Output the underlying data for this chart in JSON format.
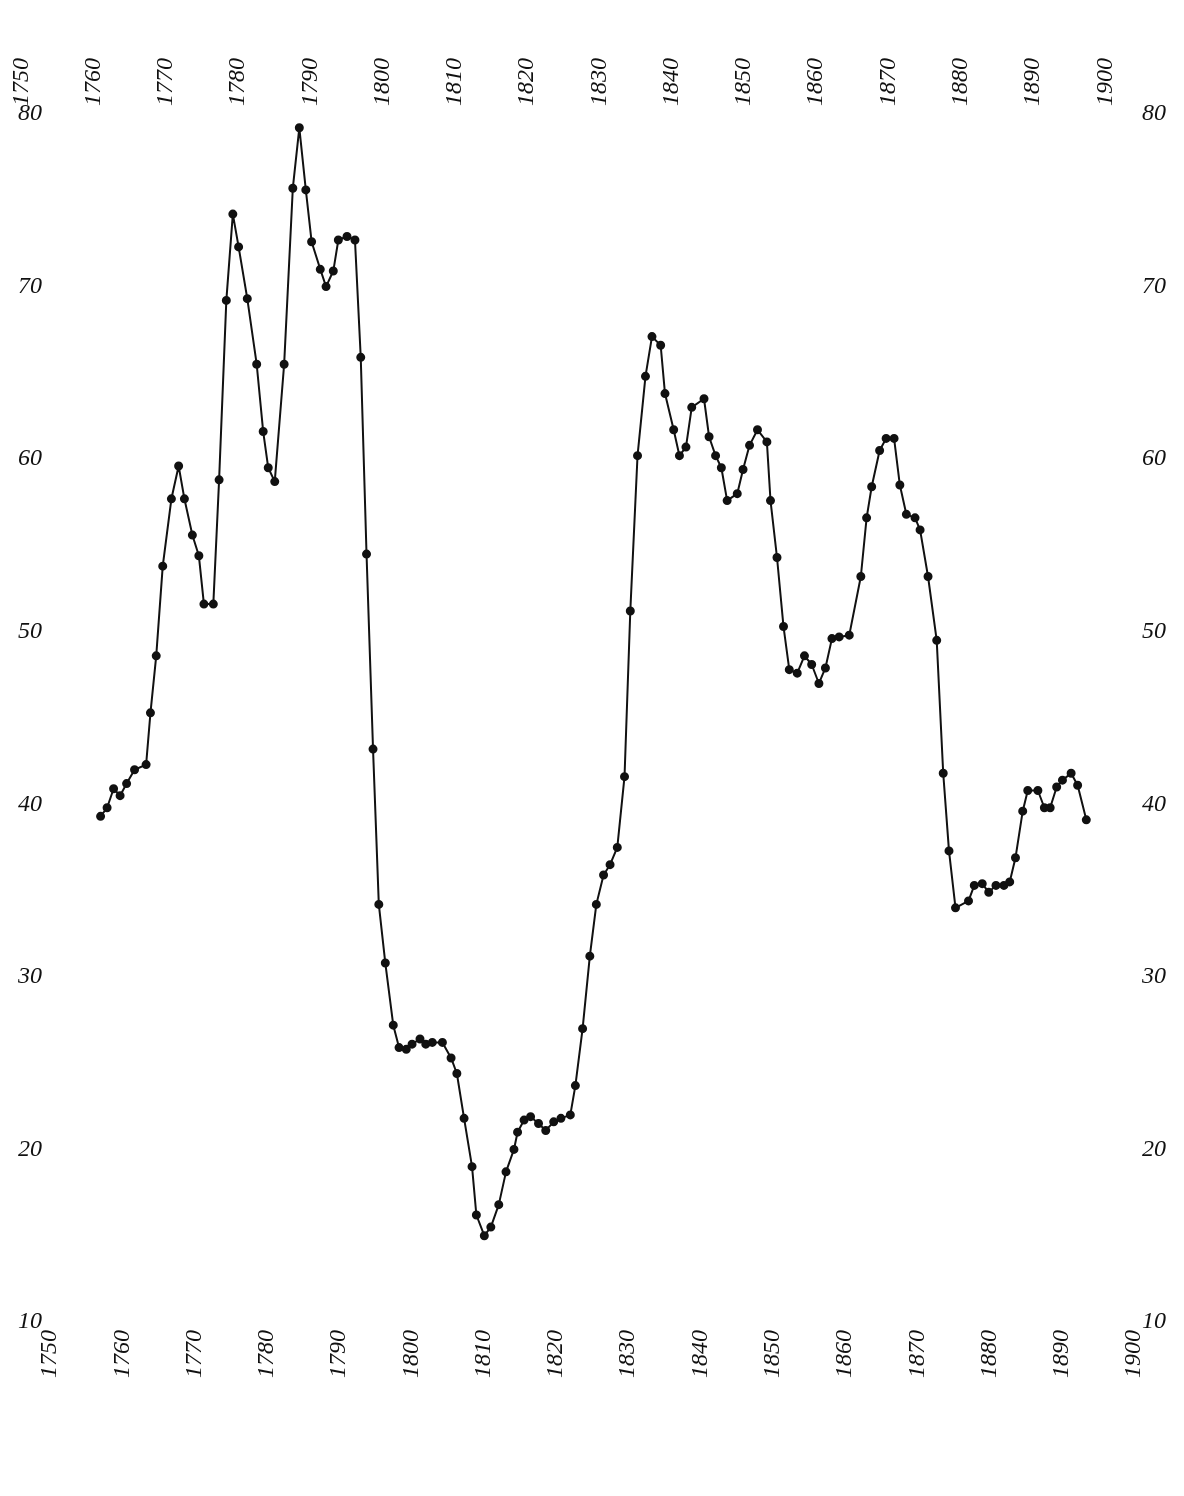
{
  "chart_data": {
    "type": "line",
    "color": "#111111",
    "marker": "circle",
    "grid": false,
    "x": [
      1757.0,
      1757.9,
      1758.8,
      1759.7,
      1760.6,
      1761.7,
      1763.3,
      1763.9,
      1764.7,
      1765.6,
      1766.8,
      1767.8,
      1768.6,
      1769.7,
      1770.6,
      1771.3,
      1772.6,
      1773.4,
      1774.4,
      1775.3,
      1776.1,
      1777.3,
      1778.6,
      1779.5,
      1780.2,
      1781.1,
      1782.4,
      1783.6,
      1784.5,
      1785.4,
      1786.2,
      1787.4,
      1788.2,
      1789.2,
      1789.9,
      1791.1,
      1792.2,
      1793.0,
      1793.8,
      1794.7,
      1795.5,
      1796.4,
      1797.5,
      1798.3,
      1799.3,
      1800.1,
      1801.2,
      1802.0,
      1802.9,
      1804.3,
      1805.5,
      1806.3,
      1807.3,
      1808.4,
      1809.0,
      1810.1,
      1811.0,
      1812.1,
      1813.1,
      1814.2,
      1814.7,
      1815.6,
      1816.5,
      1817.6,
      1818.6,
      1819.7,
      1820.7,
      1822.0,
      1822.7,
      1823.7,
      1824.7,
      1825.6,
      1826.6,
      1827.5,
      1828.5,
      1829.5,
      1830.3,
      1831.3,
      1832.4,
      1833.3,
      1834.5,
      1835.1,
      1836.3,
      1837.1,
      1838.0,
      1838.8,
      1840.5,
      1841.2,
      1842.1,
      1842.9,
      1843.7,
      1845.1,
      1845.9,
      1846.8,
      1847.9,
      1849.2,
      1849.7,
      1850.6,
      1851.5,
      1852.3,
      1853.4,
      1854.4,
      1855.4,
      1856.4,
      1857.3,
      1858.2,
      1859.2,
      1860.6,
      1862.2,
      1863.0,
      1863.7,
      1864.8,
      1865.7,
      1866.8,
      1867.6,
      1868.5,
      1869.7,
      1870.4,
      1871.5,
      1872.7,
      1873.6,
      1874.4,
      1875.3,
      1877.1,
      1877.9,
      1879.0,
      1879.9,
      1880.9,
      1882.0,
      1882.8,
      1883.6,
      1884.6,
      1885.3,
      1886.7,
      1887.6,
      1888.4,
      1889.3,
      1890.1,
      1891.3,
      1892.2,
      1893.4
    ],
    "values": [
      39.3,
      39.8,
      40.9,
      40.5,
      41.2,
      42,
      42.3,
      45.3,
      48.6,
      53.8,
      57.7,
      59.6,
      57.7,
      55.6,
      54.4,
      51.6,
      51.6,
      58.8,
      69.2,
      74.2,
      72.3,
      69.3,
      65.5,
      61.6,
      59.5,
      58.7,
      65.5,
      75.7,
      79.2,
      75.6,
      72.6,
      71.0,
      70,
      70.9,
      72.7,
      72.9,
      72.7,
      65.9,
      54.5,
      43.2,
      34.2,
      30.8,
      27.2,
      25.9,
      25.8,
      26.1,
      26.4,
      26.1,
      26.2,
      26.2,
      25.3,
      24.4,
      21.8,
      19,
      16.2,
      15,
      15.5,
      16.8,
      18.7,
      20,
      21,
      21.7,
      21.9,
      21.5,
      21.1,
      21.6,
      21.8,
      22,
      23.7,
      27,
      31.2,
      34.2,
      35.9,
      36.5,
      37.5,
      41.6,
      51.2,
      60.2,
      64.8,
      67.1,
      66.6,
      63.8,
      61.7,
      60.2,
      60.7,
      63,
      63.5,
      61.3,
      60.2,
      59.5,
      57.6,
      58,
      59.4,
      60.8,
      61.7,
      61,
      57.6,
      54.3,
      50.3,
      47.8,
      47.6,
      48.6,
      48.1,
      47,
      47.9,
      49.6,
      49.7,
      49.8,
      53.2,
      56.6,
      58.4,
      60.5,
      61.2,
      61.2,
      58.5,
      56.8,
      56.6,
      55.9,
      53.2,
      49.5,
      41.8,
      37.3,
      34,
      34.4,
      35.3,
      35.4,
      34.9,
      35.3,
      35.3,
      35.5,
      36.9,
      39.6,
      40.8,
      40.8,
      39.8,
      39.8,
      41,
      41.4,
      41.8,
      41.1,
      39.1
    ],
    "xlim": [
      1750,
      1900
    ],
    "xticks": [
      1750,
      1760,
      1770,
      1780,
      1790,
      1800,
      1810,
      1820,
      1830,
      1840,
      1850,
      1860,
      1870,
      1880,
      1890,
      1900
    ],
    "x2lim": [
      1750,
      1900
    ],
    "x2ticks": [
      1750,
      1760,
      1770,
      1780,
      1790,
      1800,
      1810,
      1820,
      1830,
      1840,
      1850,
      1860,
      1870,
      1880,
      1890,
      1900
    ],
    "ylim": [
      10,
      80
    ],
    "yticks": [
      10,
      20,
      30,
      40,
      50,
      60,
      70,
      80
    ],
    "y2lim": [
      10,
      80
    ],
    "y2ticks": [
      10,
      20,
      30,
      40,
      50,
      60,
      70,
      80
    ]
  }
}
